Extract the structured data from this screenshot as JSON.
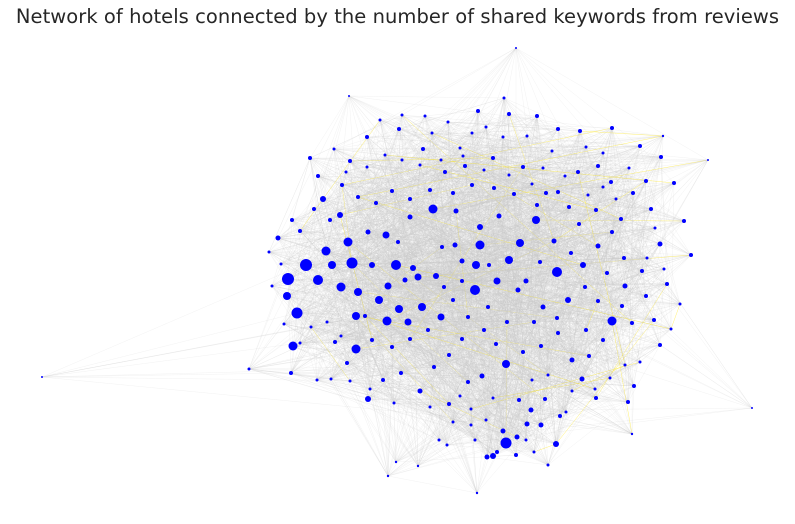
{
  "chart_data": {
    "type": "network",
    "title": "Network of hotels connected by the number of shared keywords from reviews",
    "node_color": "#0000ff",
    "edge_color": "#c8c8c8",
    "highlight_edge_color": "#ffe600",
    "background": "#ffffff",
    "grid": false,
    "axes": false,
    "layout": "force-directed"
  }
}
